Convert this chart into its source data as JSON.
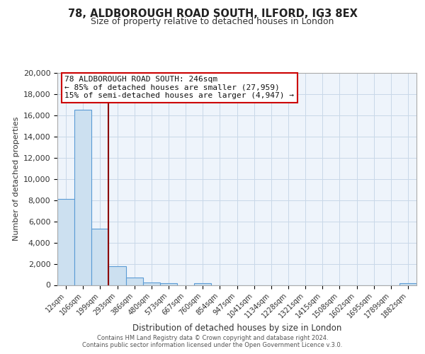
{
  "title": "78, ALDBOROUGH ROAD SOUTH, ILFORD, IG3 8EX",
  "subtitle": "Size of property relative to detached houses in London",
  "xlabel": "Distribution of detached houses by size in London",
  "ylabel": "Number of detached properties",
  "bar_labels": [
    "12sqm",
    "106sqm",
    "199sqm",
    "293sqm",
    "386sqm",
    "480sqm",
    "573sqm",
    "667sqm",
    "760sqm",
    "854sqm",
    "947sqm",
    "1041sqm",
    "1134sqm",
    "1228sqm",
    "1321sqm",
    "1415sqm",
    "1508sqm",
    "1602sqm",
    "1695sqm",
    "1789sqm",
    "1882sqm"
  ],
  "bar_values": [
    8100,
    16500,
    5300,
    1800,
    700,
    250,
    150,
    0,
    150,
    0,
    0,
    0,
    0,
    0,
    0,
    0,
    0,
    0,
    0,
    0,
    150
  ],
  "bar_color": "#cce0f0",
  "bar_edge_color": "#5b9bd5",
  "vline_color": "#8b0000",
  "annotation_line1": "78 ALDBOROUGH ROAD SOUTH: 246sqm",
  "annotation_line2": "← 85% of detached houses are smaller (27,959)",
  "annotation_line3": "15% of semi-detached houses are larger (4,947) →",
  "annotation_box_facecolor": "#ffffff",
  "annotation_box_edgecolor": "#cc0000",
  "ylim": [
    0,
    20000
  ],
  "yticks": [
    0,
    2000,
    4000,
    6000,
    8000,
    10000,
    12000,
    14000,
    16000,
    18000,
    20000
  ],
  "grid_color": "#c8d8e8",
  "bg_color": "#eef4fb",
  "footer1": "Contains HM Land Registry data © Crown copyright and database right 2024.",
  "footer2": "Contains public sector information licensed under the Open Government Licence v.3.0."
}
